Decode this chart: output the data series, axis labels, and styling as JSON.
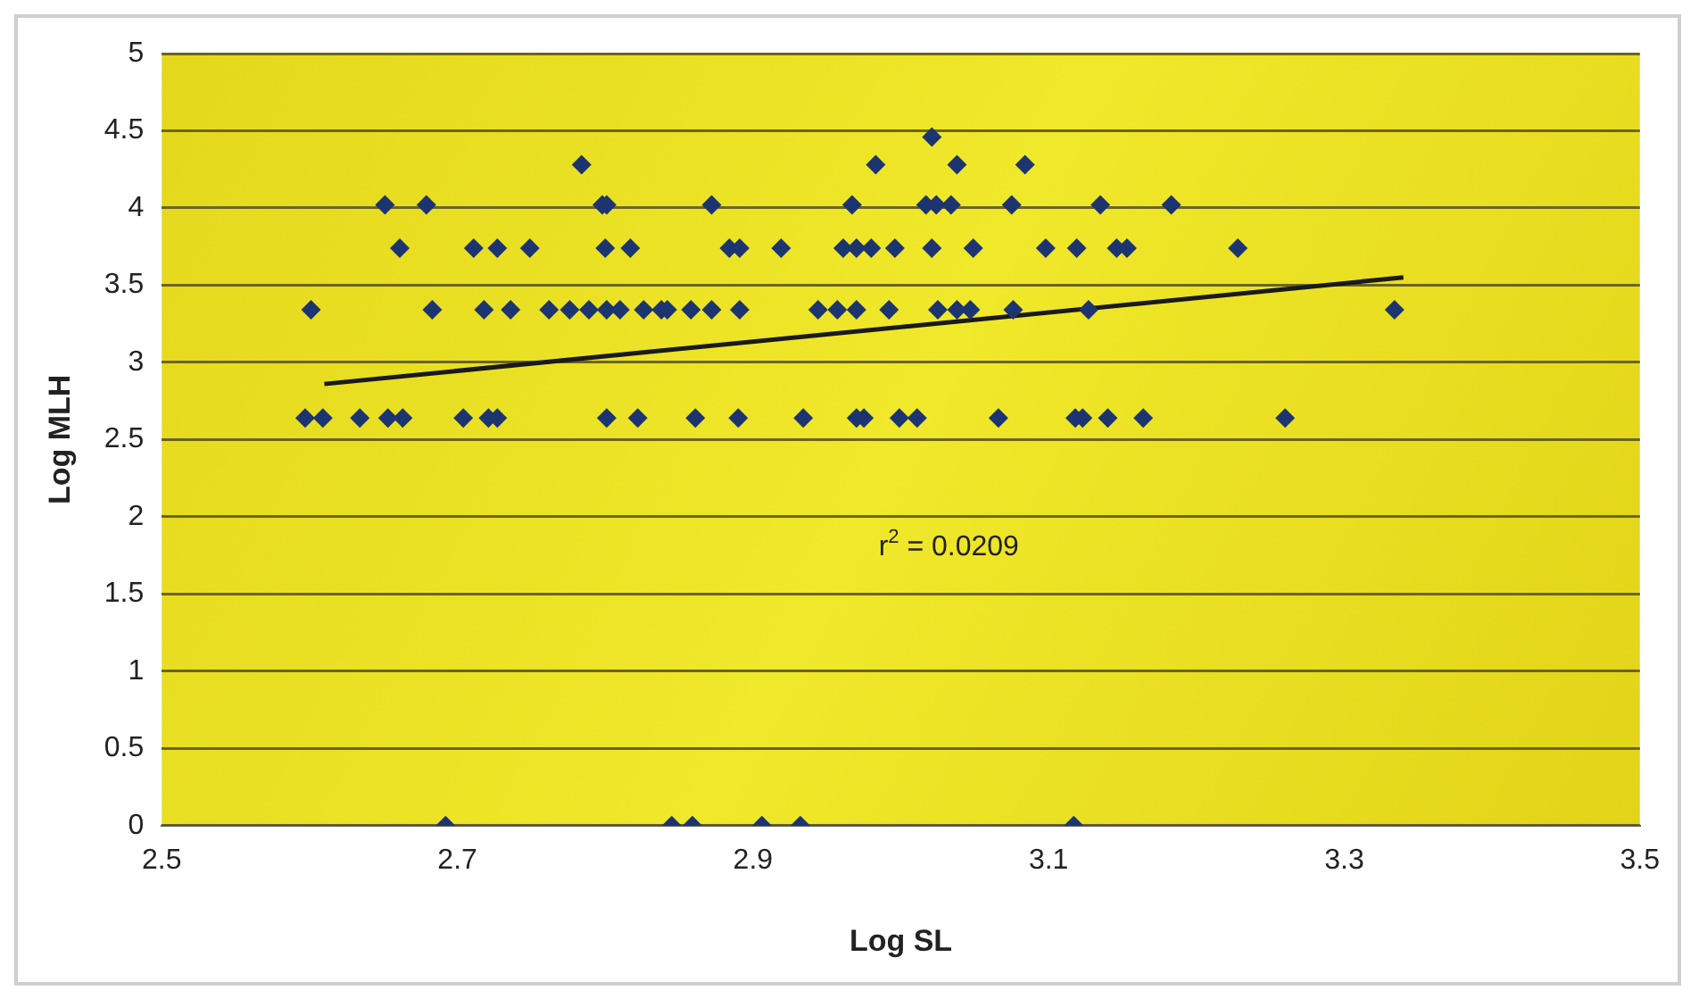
{
  "chart_data": {
    "type": "scatter",
    "xlabel": "Log SL",
    "ylabel": "Log MLH",
    "xlim": [
      2.5,
      3.5
    ],
    "xticks": [
      2.5,
      2.7,
      2.9,
      3.1,
      3.3,
      3.5
    ],
    "ylim": [
      0,
      5
    ],
    "yticks": [
      0,
      0.5,
      1,
      1.5,
      2,
      2.5,
      3,
      3.5,
      4,
      4.5,
      5
    ],
    "grid": "y",
    "legend": false,
    "marker": "diamond",
    "annotations": [
      "r$^{2}$ = 0.0209"
    ],
    "series": [
      {
        "color": "#1c3570",
        "x": [
          2.597,
          2.609,
          2.634,
          2.653,
          2.663,
          2.704,
          2.721,
          2.727,
          2.801,
          2.822,
          2.861,
          2.89,
          2.934,
          2.97,
          2.975,
          2.999,
          3.011,
          3.066,
          3.118,
          3.123,
          3.14,
          3.164,
          3.26,
          2.601,
          2.683,
          2.718,
          2.736,
          2.762,
          2.776,
          2.789,
          2.801,
          2.81,
          2.826,
          2.838,
          2.842,
          2.858,
          2.872,
          2.891,
          2.944,
          2.957,
          2.97,
          2.992,
          3.025,
          3.038,
          3.047,
          3.076,
          3.127,
          3.334,
          2.661,
          2.711,
          2.727,
          2.749,
          2.8,
          2.817,
          2.884,
          2.891,
          2.919,
          2.961,
          2.97,
          2.98,
          2.996,
          3.021,
          3.049,
          3.098,
          3.119,
          3.146,
          3.153,
          3.228,
          2.651,
          2.679,
          2.798,
          2.801,
          2.872,
          2.967,
          3.017,
          3.024,
          3.034,
          3.075,
          3.135,
          3.183,
          2.784,
          2.983,
          3.038,
          3.084,
          3.021,
          2.692,
          2.845,
          2.859,
          2.906,
          2.932,
          3.117
        ],
        "values": [
          2.64,
          2.64,
          2.64,
          2.64,
          2.64,
          2.64,
          2.64,
          2.64,
          2.64,
          2.64,
          2.64,
          2.64,
          2.64,
          2.64,
          2.64,
          2.64,
          2.64,
          2.64,
          2.64,
          2.64,
          2.64,
          2.64,
          2.64,
          3.34,
          3.34,
          3.34,
          3.34,
          3.34,
          3.34,
          3.34,
          3.34,
          3.34,
          3.34,
          3.34,
          3.34,
          3.34,
          3.34,
          3.34,
          3.34,
          3.34,
          3.34,
          3.34,
          3.34,
          3.34,
          3.34,
          3.34,
          3.34,
          3.34,
          3.74,
          3.74,
          3.74,
          3.74,
          3.74,
          3.74,
          3.74,
          3.74,
          3.74,
          3.74,
          3.74,
          3.74,
          3.74,
          3.74,
          3.74,
          3.74,
          3.74,
          3.74,
          3.74,
          3.74,
          4.02,
          4.02,
          4.02,
          4.02,
          4.02,
          4.02,
          4.02,
          4.02,
          4.02,
          4.02,
          4.02,
          4.02,
          4.28,
          4.28,
          4.28,
          4.28,
          4.46,
          0,
          0,
          0,
          0,
          0,
          0
        ]
      },
      {
        "type": "line",
        "color": "#1a1a1a",
        "marker": "none",
        "line_style": "solid",
        "x": [
          2.61,
          3.34
        ],
        "values": [
          2.86,
          3.55
        ]
      }
    ]
  }
}
